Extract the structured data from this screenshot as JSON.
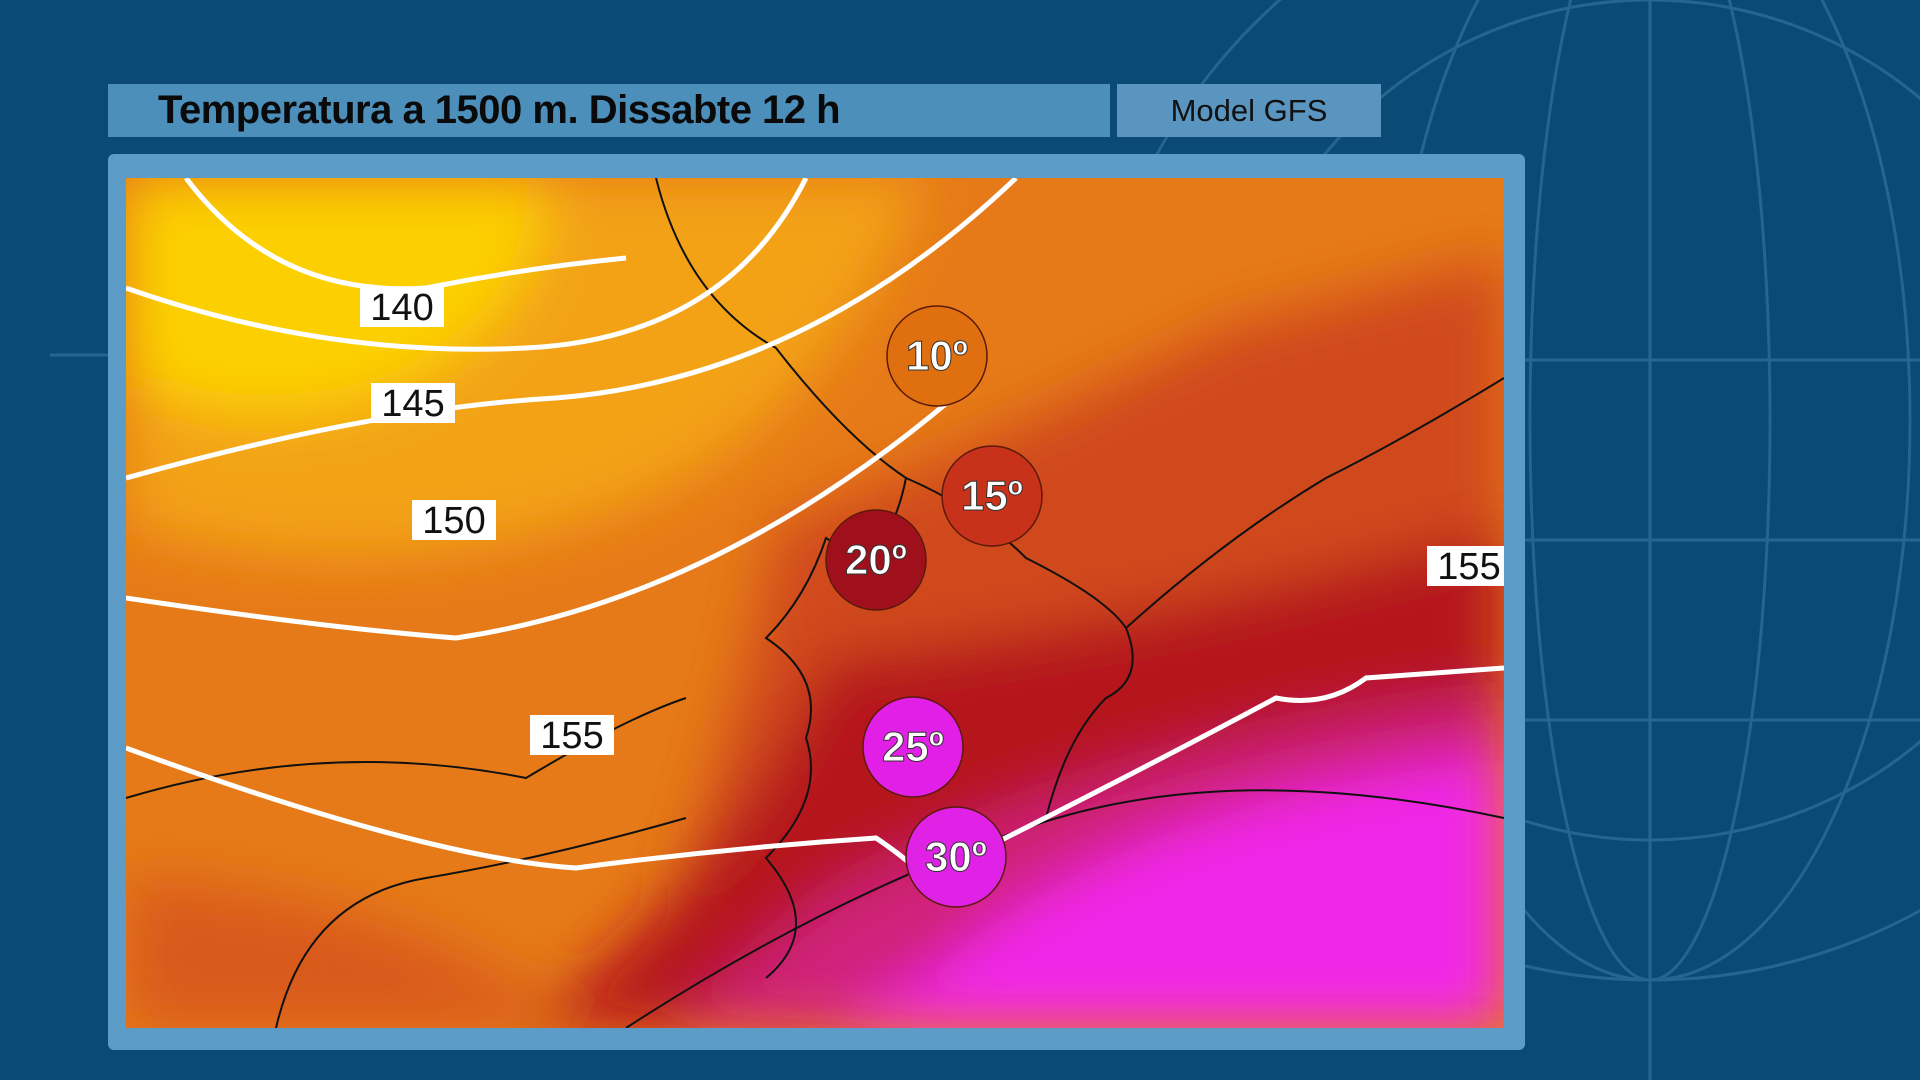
{
  "header": {
    "title": "Temperatura a 1500 m.  Dissabte 12 h",
    "model": "Model GFS"
  },
  "map": {
    "contours": [
      {
        "label": "140"
      },
      {
        "label": "145"
      },
      {
        "label": "150"
      },
      {
        "label": "155"
      },
      {
        "label": "155"
      }
    ],
    "temperatures": [
      {
        "label": "10º"
      },
      {
        "label": "15º"
      },
      {
        "label": "20º"
      },
      {
        "label": "25º"
      },
      {
        "label": "30º"
      }
    ]
  }
}
